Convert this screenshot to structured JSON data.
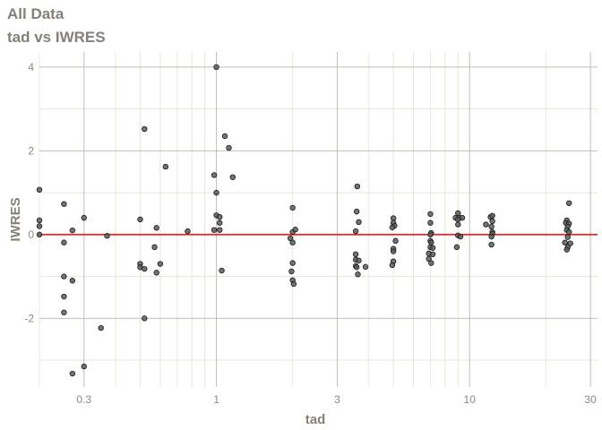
{
  "chart_data": {
    "type": "scatter",
    "title": "All Data",
    "subtitle": "tad vs IWRES",
    "xlabel": "tad",
    "ylabel": "IWRES",
    "x_scale": "log10",
    "xlim": [
      0.2,
      32
    ],
    "ylim": [
      -3.64,
      4.36
    ],
    "x_ticks": [
      0.3,
      1,
      3,
      10,
      30
    ],
    "x_tick_labels": [
      "0.3",
      "1",
      "3",
      "10",
      "30"
    ],
    "x_minor_grid": [
      0.2,
      0.4,
      0.5,
      0.6,
      0.7,
      0.8,
      0.9,
      2,
      4,
      5,
      6,
      7,
      8,
      9,
      20
    ],
    "y_ticks": [
      -2,
      0,
      2,
      4
    ],
    "y_tick_labels": [
      "-2",
      "0",
      "2",
      "4"
    ],
    "y_minor_grid": [
      -3,
      -1,
      1,
      3
    ],
    "grid": true,
    "reference_line": {
      "y": 0,
      "color": "#ff0000"
    },
    "colors": {
      "point_fill": "#5a5a5a",
      "point_stroke": "#1a1a1a",
      "title": "#857f77",
      "major_grid": "#bfbfb2",
      "minor_grid": "#e8e8d8"
    },
    "points": [
      [
        0.2,
        1.07
      ],
      [
        0.2,
        0.34
      ],
      [
        0.2,
        0.2
      ],
      [
        0.2,
        0
      ],
      [
        0.25,
        0.73
      ],
      [
        0.25,
        -0.19
      ],
      [
        0.25,
        -1.0
      ],
      [
        0.25,
        -1.48
      ],
      [
        0.25,
        -1.86
      ],
      [
        0.27,
        0.1
      ],
      [
        0.27,
        -1.1
      ],
      [
        0.27,
        -3.32
      ],
      [
        0.3,
        0.4
      ],
      [
        0.3,
        -3.15
      ],
      [
        0.35,
        -2.23
      ],
      [
        0.37,
        -0.03
      ],
      [
        0.5,
        0.36
      ],
      [
        0.5,
        -0.7
      ],
      [
        0.5,
        -0.78
      ],
      [
        0.52,
        2.52
      ],
      [
        0.52,
        -0.82
      ],
      [
        0.52,
        -2.0
      ],
      [
        0.57,
        -0.3
      ],
      [
        0.58,
        0.16
      ],
      [
        0.58,
        -0.91
      ],
      [
        0.6,
        -0.7
      ],
      [
        0.63,
        1.62
      ],
      [
        0.77,
        0.08
      ],
      [
        0.98,
        1.42
      ],
      [
        0.98,
        0.11
      ],
      [
        1.0,
        4.0
      ],
      [
        1.0,
        1.0
      ],
      [
        1.0,
        0.46
      ],
      [
        1.03,
        0.42
      ],
      [
        1.03,
        0.28
      ],
      [
        1.03,
        0.11
      ],
      [
        1.05,
        -0.86
      ],
      [
        1.08,
        2.35
      ],
      [
        1.12,
        2.07
      ],
      [
        1.16,
        1.37
      ],
      [
        2.0,
        0.64
      ],
      [
        2.0,
        0.06
      ],
      [
        2.05,
        0.12
      ],
      [
        1.96,
        -0.09
      ],
      [
        2.0,
        -0.19
      ],
      [
        2.0,
        -0.68
      ],
      [
        1.98,
        -0.88
      ],
      [
        2.0,
        -1.09
      ],
      [
        2.02,
        -1.18
      ],
      [
        3.6,
        1.15
      ],
      [
        3.58,
        0.55
      ],
      [
        3.65,
        0.3
      ],
      [
        3.55,
        0.08
      ],
      [
        3.55,
        -0.47
      ],
      [
        3.55,
        -0.6
      ],
      [
        3.65,
        -0.62
      ],
      [
        3.55,
        -0.75
      ],
      [
        3.58,
        -0.78
      ],
      [
        3.88,
        -0.77
      ],
      [
        3.62,
        -0.95
      ],
      [
        5.0,
        0.39
      ],
      [
        5.0,
        0.28
      ],
      [
        5.05,
        0.21
      ],
      [
        4.95,
        0.17
      ],
      [
        5.1,
        -0.15
      ],
      [
        5.0,
        -0.34
      ],
      [
        5.0,
        -0.4
      ],
      [
        5.0,
        -0.64
      ],
      [
        4.95,
        -0.73
      ],
      [
        7.0,
        0.49
      ],
      [
        7.0,
        0.28
      ],
      [
        7.05,
        0.04
      ],
      [
        7.0,
        0
      ],
      [
        7.0,
        -0.15
      ],
      [
        7.05,
        -0.19
      ],
      [
        7.0,
        -0.3
      ],
      [
        7.15,
        -0.32
      ],
      [
        6.9,
        -0.45
      ],
      [
        7.15,
        -0.47
      ],
      [
        6.9,
        -0.58
      ],
      [
        7.05,
        -0.68
      ],
      [
        9.0,
        0.51
      ],
      [
        8.8,
        0.4
      ],
      [
        9.1,
        0.4
      ],
      [
        9.35,
        0.4
      ],
      [
        9.0,
        0.36
      ],
      [
        9.0,
        0.24
      ],
      [
        9.0,
        -0.02
      ],
      [
        9.2,
        -0.05
      ],
      [
        8.9,
        -0.3
      ],
      [
        12.1,
        0.42
      ],
      [
        12.3,
        0.45
      ],
      [
        11.6,
        0.24
      ],
      [
        12.3,
        0.32
      ],
      [
        12.2,
        0.19
      ],
      [
        12.3,
        0.06
      ],
      [
        12.3,
        0.02
      ],
      [
        12.2,
        -0.05
      ],
      [
        12.2,
        -0.24
      ],
      [
        24.7,
        0.75
      ],
      [
        24.2,
        0.34
      ],
      [
        24.0,
        0.28
      ],
      [
        24.7,
        0.26
      ],
      [
        24.4,
        0.19
      ],
      [
        24.2,
        0.11
      ],
      [
        24.7,
        0.06
      ],
      [
        24.4,
        -0.06
      ],
      [
        23.8,
        -0.19
      ],
      [
        25.0,
        -0.21
      ],
      [
        24.4,
        -0.3
      ],
      [
        24.2,
        -0.36
      ]
    ]
  }
}
